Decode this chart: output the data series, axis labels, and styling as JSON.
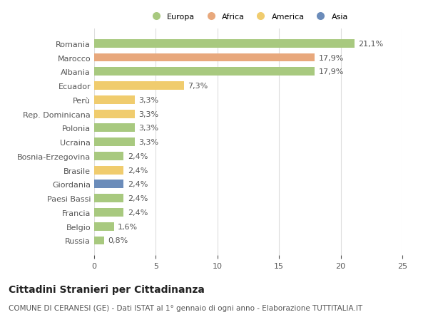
{
  "countries": [
    "Romania",
    "Marocco",
    "Albania",
    "Ecuador",
    "Perù",
    "Rep. Dominicana",
    "Polonia",
    "Ucraina",
    "Bosnia-Erzegovina",
    "Brasile",
    "Giordania",
    "Paesi Bassi",
    "Francia",
    "Belgio",
    "Russia"
  ],
  "values": [
    21.1,
    17.9,
    17.9,
    7.3,
    3.3,
    3.3,
    3.3,
    3.3,
    2.4,
    2.4,
    2.4,
    2.4,
    2.4,
    1.6,
    0.8
  ],
  "labels": [
    "21,1%",
    "17,9%",
    "17,9%",
    "7,3%",
    "3,3%",
    "3,3%",
    "3,3%",
    "3,3%",
    "2,4%",
    "2,4%",
    "2,4%",
    "2,4%",
    "2,4%",
    "1,6%",
    "0,8%"
  ],
  "continents": [
    "Europa",
    "Africa",
    "Europa",
    "America",
    "America",
    "America",
    "Europa",
    "Europa",
    "Europa",
    "America",
    "Asia",
    "Europa",
    "Europa",
    "Europa",
    "Europa"
  ],
  "colors": {
    "Europa": "#a8c97f",
    "Africa": "#e8a87c",
    "America": "#f0cc6e",
    "Asia": "#6b8cba"
  },
  "legend_labels": [
    "Europa",
    "Africa",
    "America",
    "Asia"
  ],
  "legend_colors": [
    "#a8c97f",
    "#e8a87c",
    "#f0cc6e",
    "#6b8cba"
  ],
  "title": "Cittadini Stranieri per Cittadinanza",
  "subtitle": "COMUNE DI CERANESI (GE) - Dati ISTAT al 1° gennaio di ogni anno - Elaborazione TUTTITALIA.IT",
  "xlim": [
    0,
    25
  ],
  "xticks": [
    0,
    5,
    10,
    15,
    20,
    25
  ],
  "background_color": "#ffffff",
  "grid_color": "#dddddd",
  "bar_height": 0.6,
  "label_fontsize": 8.0,
  "tick_fontsize": 8.0,
  "title_fontsize": 10,
  "subtitle_fontsize": 7.5
}
